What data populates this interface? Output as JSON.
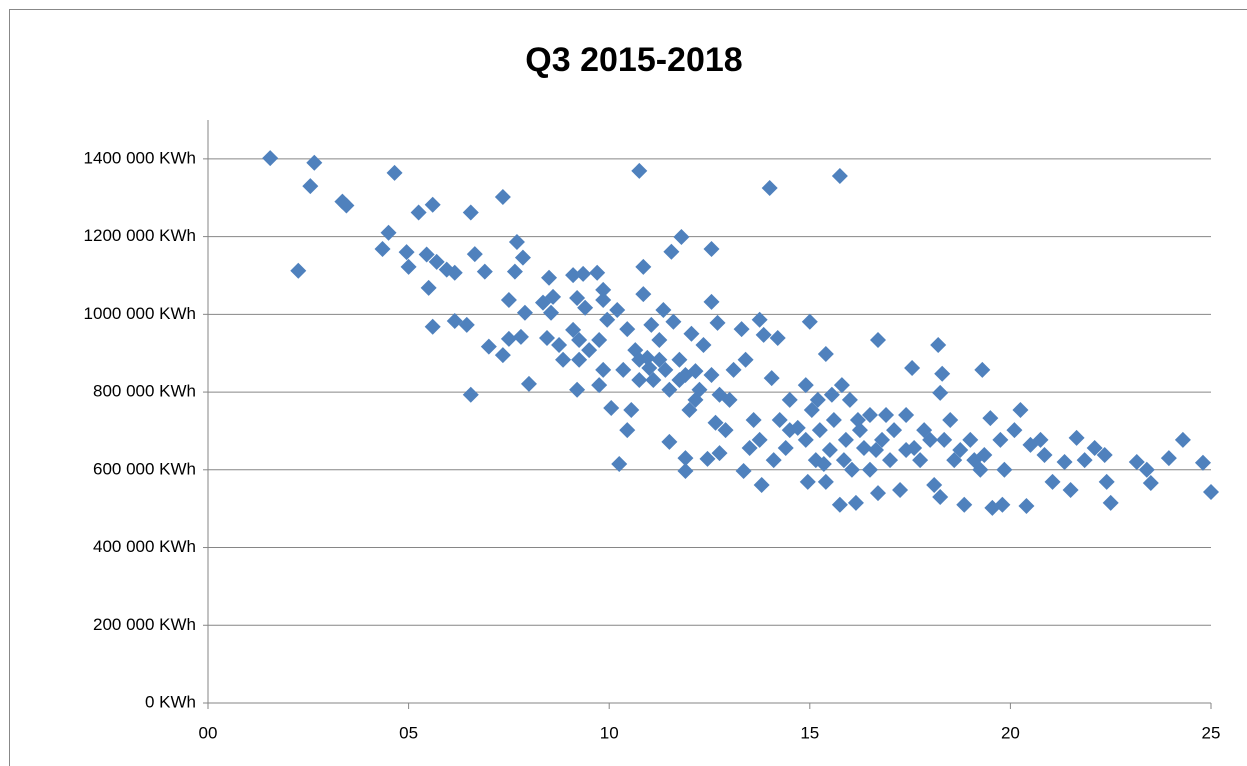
{
  "chart_data": {
    "type": "scatter",
    "title": "Q3 2015-2018",
    "color": "#4f81bd",
    "grid": true,
    "xlim": [
      0,
      25
    ],
    "xticks": [
      {
        "value": 0,
        "label": "00"
      },
      {
        "value": 5,
        "label": "05"
      },
      10,
      15,
      20,
      25
    ],
    "ylim": [
      0,
      1500000
    ],
    "yticks": [
      {
        "value": 0,
        "label": "0 KWh"
      },
      {
        "value": 200000,
        "label": "200 000 KWh"
      },
      {
        "value": 400000,
        "label": "400 000 KWh"
      },
      {
        "value": 600000,
        "label": "600 000 KWh"
      },
      {
        "value": 800000,
        "label": "800 000 KWh"
      },
      {
        "value": 1000000,
        "label": "1000 000 KWh"
      },
      {
        "value": 1200000,
        "label": "1200 000 KWh"
      },
      {
        "value": 1400000,
        "label": "1400 000 KWh"
      }
    ],
    "x": [
      1.55,
      2.25,
      2.65,
      2.55,
      3.35,
      3.45,
      4.65,
      4.35,
      4.5,
      4.95,
      5,
      5.25,
      5.6,
      5.45,
      5.5,
      5.6,
      5.7,
      5.95,
      6.15,
      6.15,
      6.55,
      6.65,
      6.45,
      6.55,
      6.9,
      7,
      7.35,
      7.5,
      7.35,
      7.7,
      7.65,
      7.85,
      7.9,
      7.8,
      8,
      7.5,
      8.5,
      8.35,
      8.55,
      8.6,
      8.75,
      8.45,
      8.85,
      9.1,
      9.2,
      9.35,
      9.7,
      9.4,
      9.1,
      9.25,
      9.25,
      9.5,
      9.2,
      9.75,
      9.85,
      9.85,
      9.95,
      9.85,
      9.75,
      10.05,
      10.2,
      10.35,
      10.25,
      10.45,
      10.45,
      10.55,
      10.75,
      10.85,
      10.85,
      10.65,
      10.75,
      11.05,
      10.95,
      11,
      11.25,
      11.35,
      11.5,
      11.55,
      11.6,
      11.8,
      11.75,
      11.9,
      11.9,
      11.9,
      12.05,
      12.15,
      12.35,
      12.55,
      12.55,
      12.7,
      12.55,
      12.45,
      12.65,
      12.75,
      12.75,
      13.1,
      13.3,
      13.4,
      13.35,
      13.5,
      13.6,
      13.75,
      13.85,
      13.8,
      14,
      14.05,
      14.2,
      14.25,
      14.4,
      14.5,
      14.7,
      14.9,
      15,
      15.05,
      14.95,
      15.2,
      15.4,
      15.25,
      15.35,
      15.4,
      15.55,
      15.6,
      15.75,
      15.75,
      15.8,
      15.9,
      16.05,
      16.15,
      16.2,
      16.35,
      16.5,
      16.7,
      16.7,
      16.8,
      16.9,
      17.1,
      17.25,
      17.4,
      17.55,
      17.6,
      17.75,
      18,
      18.1,
      18.2,
      18.25,
      18.3,
      18.25,
      18.5,
      18.6,
      18.85,
      19,
      19.25,
      19.3,
      19.35,
      19.5,
      19.55,
      19.8,
      19.85,
      20.1,
      20.25,
      20.4,
      20.5,
      20.85,
      21.05,
      21.35,
      21.5,
      21.65,
      21.85,
      22.1,
      22.35,
      22.4,
      22.5,
      23.15,
      23.4,
      23.5,
      23.95,
      24.3,
      24.8,
      25,
      11.25,
      11.5,
      12,
      12.25,
      13,
      13.75,
      14.5,
      14.9,
      15.5,
      15.85,
      16.25,
      16.65,
      17,
      17.4,
      17.85,
      18.35,
      18.75,
      19.1,
      19.75,
      20.75,
      10.75,
      11.1,
      11.4,
      11.75,
      12.15,
      12.9,
      14.1,
      15.15,
      16,
      16.5
    ],
    "values": [
      1402000,
      1112000,
      1390000,
      1330000,
      1290000,
      1280000,
      1364000,
      1168000,
      1210000,
      1160000,
      1122000,
      1262000,
      1282000,
      1154000,
      1068000,
      968000,
      1135000,
      1115000,
      1107000,
      983000,
      1262000,
      1155000,
      973000,
      793000,
      1110000,
      917000,
      1302000,
      1037000,
      895000,
      1186000,
      1110000,
      1146000,
      1004000,
      942000,
      821000,
      937000,
      1094000,
      1030000,
      1004000,
      1045000,
      921000,
      939000,
      883000,
      1101000,
      1042000,
      1104000,
      1107000,
      1017000,
      960000,
      934000,
      883000,
      908000,
      806000,
      934000,
      1063000,
      1037000,
      986000,
      857000,
      818000,
      759000,
      1011000,
      857000,
      615000,
      962000,
      702000,
      754000,
      1369000,
      1122000,
      1052000,
      908000,
      831000,
      973000,
      888000,
      862000,
      934000,
      1011000,
      672000,
      1161000,
      981000,
      1199000,
      883000,
      844000,
      597000,
      630000,
      950000,
      854000,
      921000,
      1168000,
      1032000,
      978000,
      844000,
      628000,
      721000,
      643000,
      793000,
      857000,
      962000,
      883000,
      597000,
      656000,
      728000,
      986000,
      947000,
      561000,
      1325000,
      836000,
      939000,
      728000,
      656000,
      780000,
      708000,
      818000,
      981000,
      754000,
      569000,
      780000,
      898000,
      702000,
      615000,
      569000,
      793000,
      728000,
      1356000,
      510000,
      818000,
      677000,
      600000,
      515000,
      728000,
      656000,
      741000,
      934000,
      540000,
      677000,
      741000,
      702000,
      548000,
      741000,
      862000,
      656000,
      625000,
      677000,
      561000,
      921000,
      798000,
      847000,
      530000,
      728000,
      625000,
      510000,
      677000,
      600000,
      857000,
      638000,
      733000,
      502000,
      510000,
      600000,
      702000,
      754000,
      507000,
      664000,
      638000,
      569000,
      620000,
      548000,
      682000,
      625000,
      656000,
      638000,
      569000,
      515000,
      620000,
      600000,
      566000,
      630000,
      677000,
      618000,
      543000,
      883000,
      806000,
      754000,
      806000,
      780000,
      677000,
      702000,
      677000,
      651000,
      625000,
      702000,
      651000,
      625000,
      651000,
      702000,
      677000,
      651000,
      625000,
      677000,
      677000,
      883000,
      831000,
      857000,
      831000,
      780000,
      702000,
      625000,
      625000,
      780000,
      600000
    ]
  }
}
